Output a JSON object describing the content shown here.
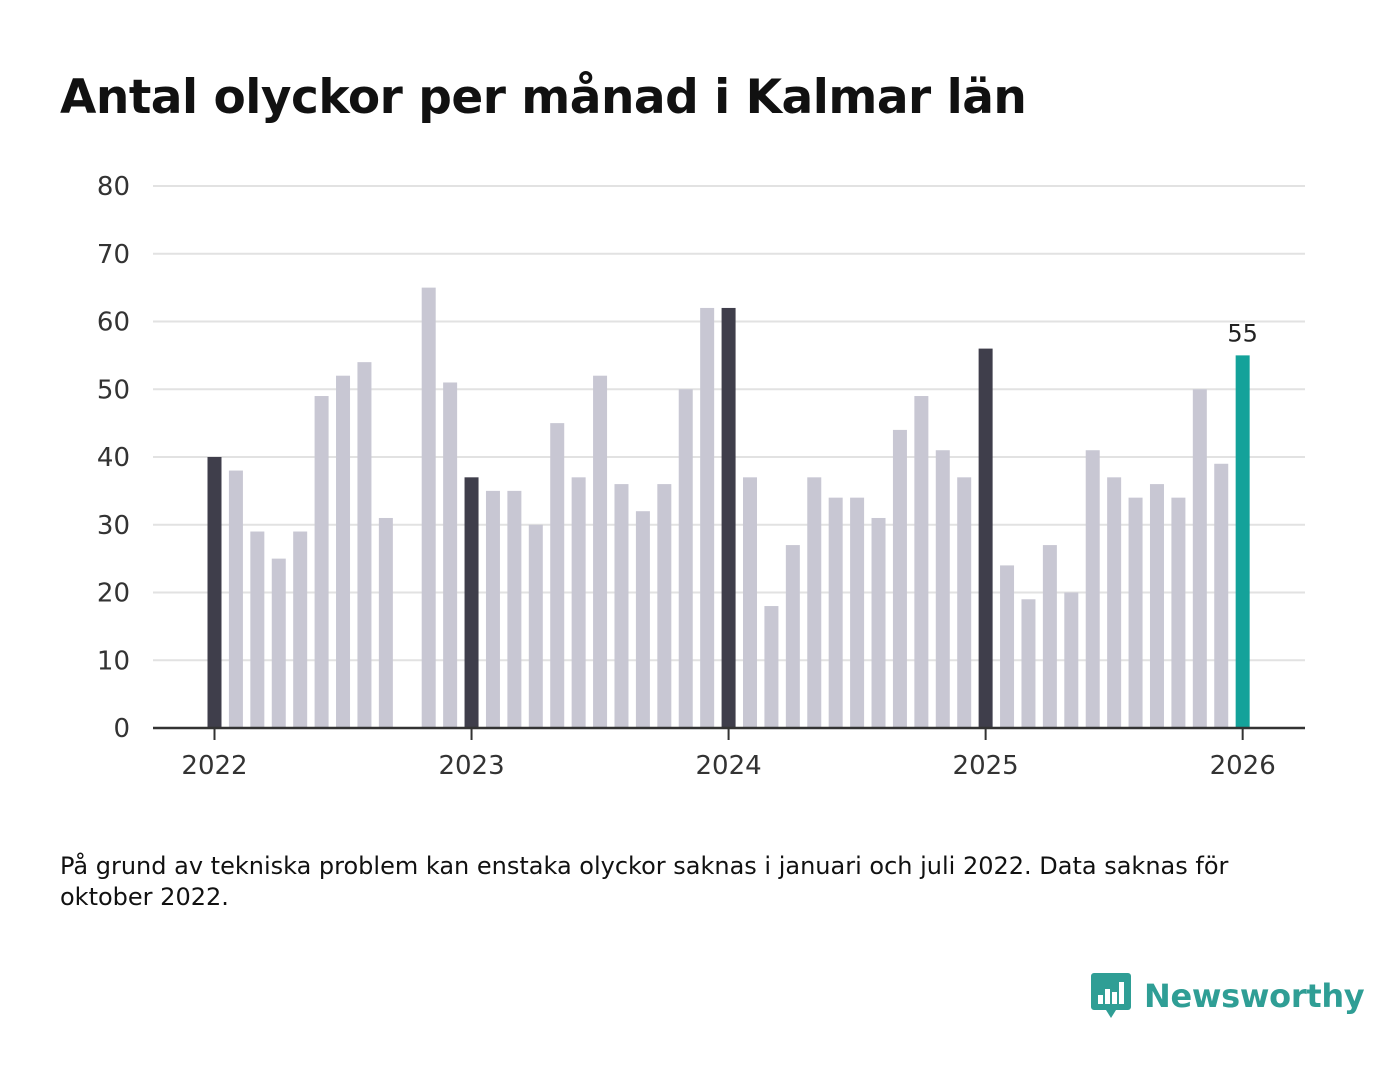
{
  "title": "Antal olyckor per månad i Kalmar län",
  "footnote": "På grund av tekniska problem kan enstaka olyckor saknas i januari och juli 2022. Data saknas för oktober 2022.",
  "brand": {
    "name": "Newsworthy",
    "icon": "newsworthy-logo-icon"
  },
  "colors": {
    "default_bar": "#c8c7d3",
    "january_bar": "#3f3e4b",
    "latest_bar": "#14a29a",
    "grid": "#e2e2e2",
    "axis": "#333333"
  },
  "chart_data": {
    "type": "bar",
    "title": "Antal olyckor per månad i Kalmar län",
    "xlabel": "",
    "ylabel": "",
    "ylim": [
      0,
      80
    ],
    "yticks": [
      "0",
      "10",
      "20",
      "30",
      "40",
      "50",
      "60",
      "70",
      "80"
    ],
    "xticks": [
      "2022",
      "2023",
      "2024",
      "2025",
      "2026"
    ],
    "grid": true,
    "categories": [
      "2022-01",
      "2022-02",
      "2022-03",
      "2022-04",
      "2022-05",
      "2022-06",
      "2022-07",
      "2022-08",
      "2022-09",
      "2022-10",
      "2022-11",
      "2022-12",
      "2023-01",
      "2023-02",
      "2023-03",
      "2023-04",
      "2023-05",
      "2023-06",
      "2023-07",
      "2023-08",
      "2023-09",
      "2023-10",
      "2023-11",
      "2023-12",
      "2024-01",
      "2024-02",
      "2024-03",
      "2024-04",
      "2024-05",
      "2024-06",
      "2024-07",
      "2024-08",
      "2024-09",
      "2024-10",
      "2024-11",
      "2024-12",
      "2025-01",
      "2025-02",
      "2025-03",
      "2025-04",
      "2025-05",
      "2025-06",
      "2025-07",
      "2025-08",
      "2025-09",
      "2025-10",
      "2025-11",
      "2025-12",
      "2026-01"
    ],
    "values": [
      40,
      38,
      29,
      25,
      29,
      49,
      52,
      54,
      31,
      null,
      65,
      51,
      37,
      35,
      35,
      30,
      45,
      37,
      52,
      36,
      32,
      36,
      50,
      62,
      62,
      37,
      18,
      27,
      37,
      34,
      34,
      31,
      44,
      49,
      41,
      37,
      56,
      24,
      19,
      27,
      20,
      41,
      37,
      34,
      36,
      34,
      50,
      39,
      55
    ],
    "highlight_label": "55"
  }
}
